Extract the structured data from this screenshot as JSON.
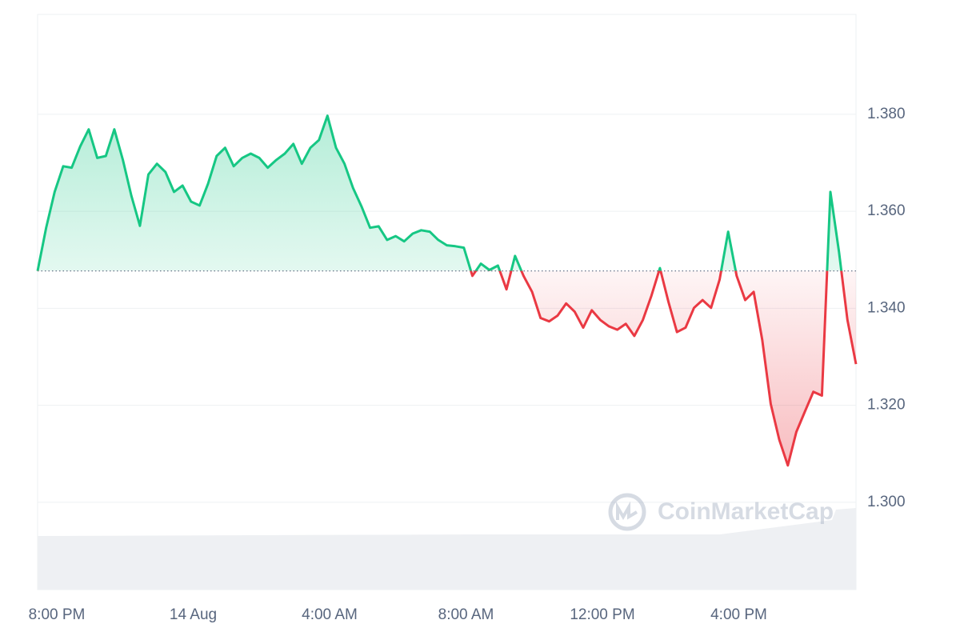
{
  "chart_data": {
    "type": "line",
    "watermark": "CoinMarketCap",
    "x": [
      0,
      0.25,
      0.5,
      0.75,
      1,
      1.25,
      1.5,
      1.75,
      2,
      2.25,
      2.5,
      2.75,
      3,
      3.25,
      3.5,
      3.75,
      4,
      4.25,
      4.5,
      4.75,
      5,
      5.25,
      5.5,
      5.75,
      6,
      6.25,
      6.5,
      6.75,
      7,
      7.25,
      7.5,
      7.75,
      8,
      8.25,
      8.5,
      8.75,
      9,
      9.25,
      9.5,
      9.75,
      10,
      10.25,
      10.5,
      10.75,
      11,
      11.25,
      11.5,
      11.75,
      12,
      12.25,
      12.5,
      12.75,
      13,
      13.25,
      13.5,
      13.75,
      14,
      14.25,
      14.5,
      14.75,
      15,
      15.25,
      15.5,
      15.75,
      16,
      16.25,
      16.5,
      16.75,
      17,
      17.25,
      17.5,
      17.75,
      18,
      18.25,
      18.5,
      18.75,
      19,
      19.25,
      19.5,
      19.75,
      20,
      20.25,
      20.5,
      20.75,
      21,
      21.25,
      21.5,
      21.75,
      22,
      22.25,
      22.5,
      22.75,
      23,
      23.25,
      23.5,
      23.75,
      24
    ],
    "values": [
      1.3477,
      1.3566,
      1.364,
      1.3693,
      1.369,
      1.3734,
      1.3769,
      1.371,
      1.3714,
      1.3769,
      1.3706,
      1.3632,
      1.357,
      1.3676,
      1.3698,
      1.3681,
      1.364,
      1.3653,
      1.362,
      1.3612,
      1.3657,
      1.3714,
      1.3731,
      1.3693,
      1.371,
      1.3719,
      1.371,
      1.369,
      1.3706,
      1.3719,
      1.3739,
      1.3698,
      1.3731,
      1.3747,
      1.3797,
      1.3731,
      1.3698,
      1.3648,
      1.361,
      1.3566,
      1.3569,
      1.3541,
      1.3549,
      1.3538,
      1.3554,
      1.3561,
      1.3558,
      1.3541,
      1.353,
      1.3528,
      1.3525,
      1.3467,
      1.3492,
      1.3479,
      1.3488,
      1.3439,
      1.3508,
      1.3467,
      1.3434,
      1.338,
      1.3373,
      1.3385,
      1.341,
      1.3393,
      1.336,
      1.3396,
      1.3376,
      1.3363,
      1.3356,
      1.3368,
      1.3343,
      1.3376,
      1.3426,
      1.3483,
      1.3413,
      1.3351,
      1.336,
      1.3401,
      1.3417,
      1.3401,
      1.3459,
      1.3558,
      1.3467,
      1.3417,
      1.3434,
      1.3335,
      1.3203,
      1.3129,
      1.3076,
      1.3145,
      1.3187,
      1.3228,
      1.322,
      1.364,
      1.3517,
      1.3376,
      1.3285
    ],
    "baseline": 1.3477,
    "up_color": "#16c784",
    "down_color": "#ea3943",
    "xlim": [
      0,
      24
    ],
    "xticks": [
      {
        "value": 0,
        "label": "8:00 PM"
      },
      {
        "value": 4,
        "label": "14 Aug"
      },
      {
        "value": 8,
        "label": "4:00 AM"
      },
      {
        "value": 12,
        "label": "8:00 AM"
      },
      {
        "value": 16,
        "label": "12:00 PM"
      },
      {
        "value": 20,
        "label": "4:00 PM"
      }
    ],
    "ylim": [
      1.282,
      1.4006
    ],
    "yticks": [
      {
        "value": 1.3,
        "label": "1.300"
      },
      {
        "value": 1.32,
        "label": "1.320"
      },
      {
        "value": 1.34,
        "label": "1.340"
      },
      {
        "value": 1.36,
        "label": "1.360"
      },
      {
        "value": 1.38,
        "label": "1.380"
      }
    ],
    "grid": true
  }
}
